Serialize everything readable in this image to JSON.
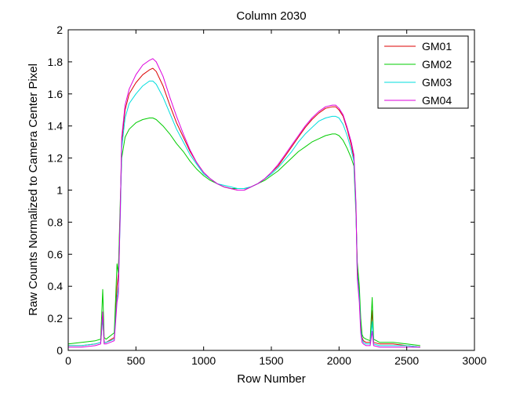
{
  "chart_data": {
    "type": "line",
    "title": "Column 2030",
    "xlabel": "Row Number",
    "ylabel": "Raw Counts Normalized to Camera Center Pixel",
    "xlim": [
      0,
      3000
    ],
    "ylim": [
      0,
      2
    ],
    "xticks": [
      0,
      500,
      1000,
      1500,
      2000,
      2500,
      3000
    ],
    "yticks": [
      0,
      0.2,
      0.4,
      0.6,
      0.8,
      1,
      1.2,
      1.4,
      1.6,
      1.8,
      2
    ],
    "xtick_labels": [
      "0",
      "500",
      "1000",
      "1500",
      "2000",
      "2500",
      "3000"
    ],
    "ytick_labels": [
      "0",
      "0.2",
      "0.4",
      "0.6",
      "0.8",
      "1",
      "1.2",
      "1.4",
      "1.6",
      "1.8",
      "2"
    ],
    "grid": false,
    "legend_position": "top-right",
    "series": [
      {
        "name": "GM01",
        "color": "#dd0000",
        "x": [
          0,
          100,
          200,
          240,
          255,
          265,
          280,
          340,
          360,
          370,
          385,
          395,
          420,
          450,
          500,
          550,
          600,
          625,
          650,
          700,
          750,
          800,
          850,
          900,
          950,
          1000,
          1050,
          1100,
          1150,
          1200,
          1250,
          1300,
          1350,
          1400,
          1450,
          1500,
          1550,
          1600,
          1650,
          1700,
          1750,
          1800,
          1850,
          1900,
          1950,
          1975,
          2000,
          2030,
          2060,
          2090,
          2110,
          2125,
          2135,
          2150,
          2160,
          2170,
          2180,
          2200,
          2230,
          2245,
          2255,
          2300,
          2400,
          2500,
          2600
        ],
        "y": [
          0.03,
          0.03,
          0.04,
          0.05,
          0.22,
          0.05,
          0.05,
          0.08,
          0.4,
          0.48,
          0.9,
          1.3,
          1.5,
          1.6,
          1.67,
          1.72,
          1.75,
          1.76,
          1.74,
          1.65,
          1.53,
          1.42,
          1.33,
          1.24,
          1.17,
          1.11,
          1.07,
          1.04,
          1.02,
          1.01,
          1.0,
          1.0,
          1.02,
          1.04,
          1.07,
          1.11,
          1.15,
          1.21,
          1.27,
          1.33,
          1.39,
          1.44,
          1.48,
          1.51,
          1.52,
          1.52,
          1.5,
          1.46,
          1.38,
          1.28,
          1.2,
          0.9,
          0.5,
          0.35,
          0.15,
          0.08,
          0.06,
          0.05,
          0.05,
          0.25,
          0.05,
          0.04,
          0.04,
          0.03,
          0.02
        ]
      },
      {
        "name": "GM02",
        "color": "#00cc00",
        "x": [
          0,
          100,
          200,
          240,
          255,
          265,
          280,
          340,
          360,
          370,
          385,
          395,
          420,
          450,
          500,
          550,
          600,
          625,
          650,
          700,
          750,
          800,
          850,
          900,
          950,
          1000,
          1050,
          1100,
          1150,
          1200,
          1250,
          1300,
          1350,
          1400,
          1450,
          1500,
          1550,
          1600,
          1650,
          1700,
          1750,
          1800,
          1850,
          1900,
          1950,
          1975,
          2000,
          2030,
          2060,
          2090,
          2110,
          2125,
          2135,
          2150,
          2160,
          2170,
          2180,
          2200,
          2230,
          2245,
          2255,
          2300,
          2400,
          2500,
          2600
        ],
        "y": [
          0.04,
          0.05,
          0.06,
          0.07,
          0.38,
          0.08,
          0.07,
          0.11,
          0.54,
          0.48,
          0.95,
          1.2,
          1.33,
          1.38,
          1.42,
          1.44,
          1.45,
          1.45,
          1.44,
          1.4,
          1.35,
          1.29,
          1.24,
          1.18,
          1.13,
          1.09,
          1.06,
          1.04,
          1.02,
          1.01,
          1.01,
          1.01,
          1.02,
          1.04,
          1.06,
          1.09,
          1.12,
          1.16,
          1.2,
          1.24,
          1.27,
          1.3,
          1.32,
          1.34,
          1.35,
          1.35,
          1.34,
          1.31,
          1.26,
          1.2,
          1.15,
          0.85,
          0.55,
          0.4,
          0.2,
          0.1,
          0.08,
          0.07,
          0.06,
          0.33,
          0.07,
          0.05,
          0.05,
          0.04,
          0.03
        ]
      },
      {
        "name": "GM03",
        "color": "#00dddd",
        "x": [
          0,
          100,
          200,
          240,
          255,
          265,
          280,
          340,
          360,
          370,
          385,
          395,
          420,
          450,
          500,
          550,
          600,
          625,
          650,
          700,
          750,
          800,
          850,
          900,
          950,
          1000,
          1050,
          1100,
          1150,
          1200,
          1250,
          1300,
          1350,
          1400,
          1450,
          1500,
          1550,
          1600,
          1650,
          1700,
          1750,
          1800,
          1850,
          1900,
          1950,
          1975,
          2000,
          2030,
          2060,
          2090,
          2110,
          2125,
          2135,
          2150,
          2160,
          2170,
          2180,
          2200,
          2230,
          2245,
          2255,
          2300,
          2400,
          2500,
          2600
        ],
        "y": [
          0.03,
          0.03,
          0.04,
          0.05,
          0.2,
          0.05,
          0.05,
          0.07,
          0.33,
          0.4,
          0.85,
          1.26,
          1.45,
          1.54,
          1.6,
          1.65,
          1.68,
          1.68,
          1.66,
          1.58,
          1.48,
          1.38,
          1.3,
          1.22,
          1.16,
          1.1,
          1.07,
          1.04,
          1.03,
          1.02,
          1.01,
          1.01,
          1.02,
          1.04,
          1.07,
          1.1,
          1.14,
          1.19,
          1.24,
          1.3,
          1.35,
          1.39,
          1.43,
          1.45,
          1.46,
          1.46,
          1.45,
          1.41,
          1.34,
          1.25,
          1.18,
          0.88,
          0.48,
          0.33,
          0.13,
          0.07,
          0.05,
          0.04,
          0.04,
          0.18,
          0.04,
          0.03,
          0.03,
          0.03,
          0.02
        ]
      },
      {
        "name": "GM04",
        "color": "#dd00dd",
        "x": [
          0,
          100,
          200,
          240,
          255,
          265,
          280,
          340,
          360,
          370,
          385,
          395,
          420,
          450,
          500,
          550,
          600,
          625,
          650,
          700,
          750,
          800,
          850,
          900,
          950,
          1000,
          1050,
          1100,
          1150,
          1200,
          1250,
          1300,
          1350,
          1400,
          1450,
          1500,
          1550,
          1600,
          1650,
          1700,
          1750,
          1800,
          1850,
          1900,
          1950,
          1975,
          2000,
          2030,
          2060,
          2090,
          2110,
          2125,
          2135,
          2150,
          2160,
          2170,
          2180,
          2200,
          2230,
          2245,
          2255,
          2300,
          2400,
          2500,
          2600
        ],
        "y": [
          0.02,
          0.02,
          0.03,
          0.04,
          0.24,
          0.04,
          0.04,
          0.06,
          0.3,
          0.35,
          0.9,
          1.33,
          1.53,
          1.63,
          1.72,
          1.78,
          1.81,
          1.82,
          1.8,
          1.71,
          1.58,
          1.46,
          1.35,
          1.25,
          1.17,
          1.11,
          1.07,
          1.04,
          1.02,
          1.01,
          1.0,
          1.0,
          1.02,
          1.04,
          1.07,
          1.11,
          1.16,
          1.22,
          1.28,
          1.34,
          1.4,
          1.45,
          1.49,
          1.52,
          1.53,
          1.53,
          1.51,
          1.47,
          1.39,
          1.3,
          1.22,
          0.92,
          0.45,
          0.3,
          0.11,
          0.05,
          0.04,
          0.03,
          0.03,
          0.12,
          0.03,
          0.02,
          0.02,
          0.02,
          0.02
        ]
      }
    ]
  }
}
